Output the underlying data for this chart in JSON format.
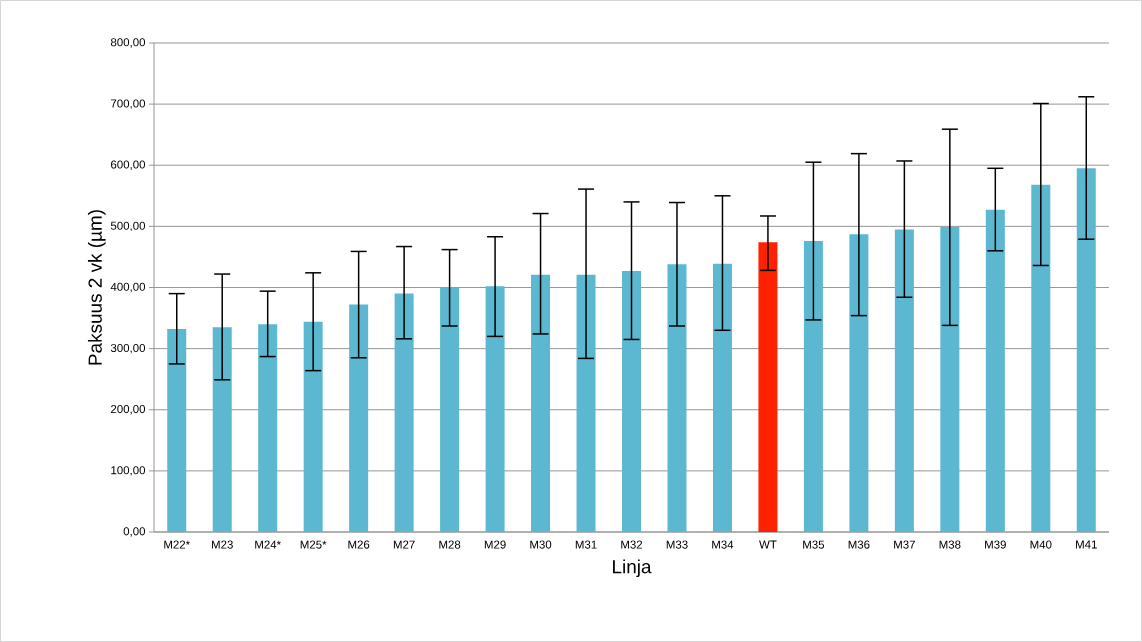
{
  "chart_data": {
    "type": "bar",
    "xlabel": "Linja",
    "ylabel": "Paksuus 2 vk (µm)",
    "categories": [
      "M22*",
      "M23",
      "M24*",
      "M25*",
      "M26",
      "M27",
      "M28",
      "M29",
      "M30",
      "M31",
      "M32",
      "M33",
      "M34",
      "WT",
      "M35",
      "M36",
      "M37",
      "M38",
      "M39",
      "M40",
      "M41"
    ],
    "values": [
      332,
      335,
      340,
      344,
      372,
      390,
      400,
      402,
      421,
      421,
      427,
      438,
      439,
      474,
      476,
      487,
      495,
      499,
      527,
      568,
      595
    ],
    "errors": [
      [
        275,
        390
      ],
      [
        249,
        422
      ],
      [
        287,
        394
      ],
      [
        264,
        424
      ],
      [
        285,
        459
      ],
      [
        316,
        467
      ],
      [
        337,
        462
      ],
      [
        320,
        483
      ],
      [
        324,
        521
      ],
      [
        284,
        561
      ],
      [
        315,
        540
      ],
      [
        337,
        539
      ],
      [
        330,
        550
      ],
      [
        428,
        517
      ],
      [
        347,
        605
      ],
      [
        354,
        619
      ],
      [
        384,
        607
      ],
      [
        338,
        659
      ],
      [
        460,
        595
      ],
      [
        436,
        701
      ],
      [
        479,
        712
      ]
    ],
    "colors": [
      "#5bb8d0",
      "#5bb8d0",
      "#5bb8d0",
      "#5bb8d0",
      "#5bb8d0",
      "#5bb8d0",
      "#5bb8d0",
      "#5bb8d0",
      "#5bb8d0",
      "#5bb8d0",
      "#5bb8d0",
      "#5bb8d0",
      "#5bb8d0",
      "#ff2200",
      "#5bb8d0",
      "#5bb8d0",
      "#5bb8d0",
      "#5bb8d0",
      "#5bb8d0",
      "#5bb8d0",
      "#5bb8d0"
    ],
    "ylim": [
      0,
      800
    ],
    "yticks": [
      {
        "value": 0,
        "label": "0,00"
      },
      {
        "value": 100,
        "label": "100,00"
      },
      {
        "value": 200,
        "label": "200,00"
      },
      {
        "value": 300,
        "label": "300,00"
      },
      {
        "value": 400,
        "label": "400,00"
      },
      {
        "value": 500,
        "label": "500,00"
      },
      {
        "value": 600,
        "label": "600,00"
      },
      {
        "value": 700,
        "label": "700,00"
      },
      {
        "value": 800,
        "label": "800,00"
      }
    ],
    "grid": "y"
  }
}
